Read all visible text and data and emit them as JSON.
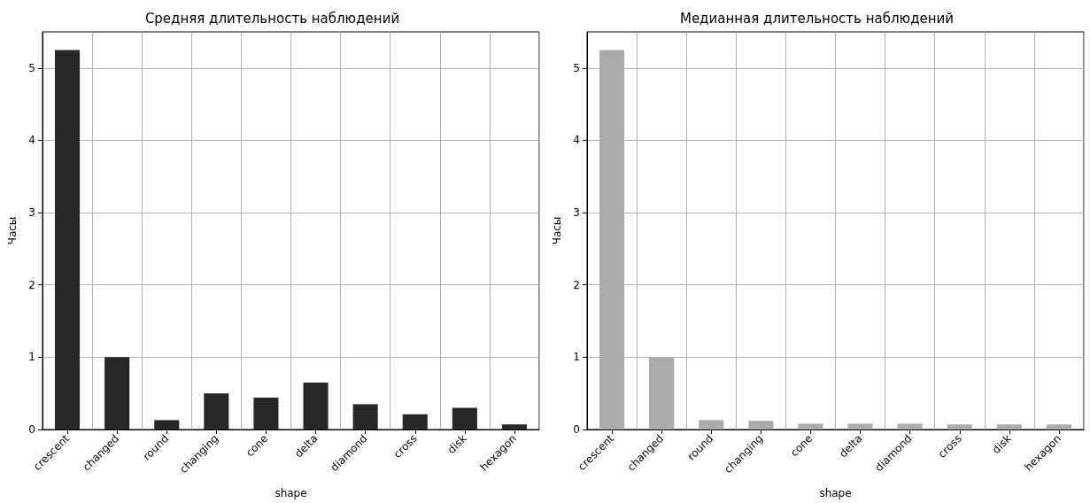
{
  "chart_data": [
    {
      "type": "bar",
      "title": "Средняя длительность наблюдений",
      "xlabel": "shape",
      "ylabel": "Часы",
      "categories": [
        "crescent",
        "changed",
        "round",
        "changing",
        "cone",
        "delta",
        "diamond",
        "cross",
        "disk",
        "hexagon"
      ],
      "values": [
        5.25,
        1.0,
        0.13,
        0.5,
        0.44,
        0.65,
        0.35,
        0.21,
        0.3,
        0.07
      ],
      "color": "#262626",
      "ylim": [
        0,
        5.5
      ],
      "yticks": [
        0,
        1,
        2,
        3,
        4,
        5
      ],
      "grid": true
    },
    {
      "type": "bar",
      "title": "Медианная длительность наблюдений",
      "xlabel": "shape",
      "ylabel": "Часы",
      "categories": [
        "crescent",
        "changed",
        "round",
        "changing",
        "cone",
        "delta",
        "diamond",
        "cross",
        "disk",
        "hexagon"
      ],
      "values": [
        5.25,
        1.0,
        0.13,
        0.12,
        0.08,
        0.08,
        0.08,
        0.07,
        0.07,
        0.07
      ],
      "color": "#aaaaaa",
      "ylim": [
        0,
        5.5
      ],
      "yticks": [
        0,
        1,
        2,
        3,
        4,
        5
      ],
      "grid": true
    }
  ]
}
